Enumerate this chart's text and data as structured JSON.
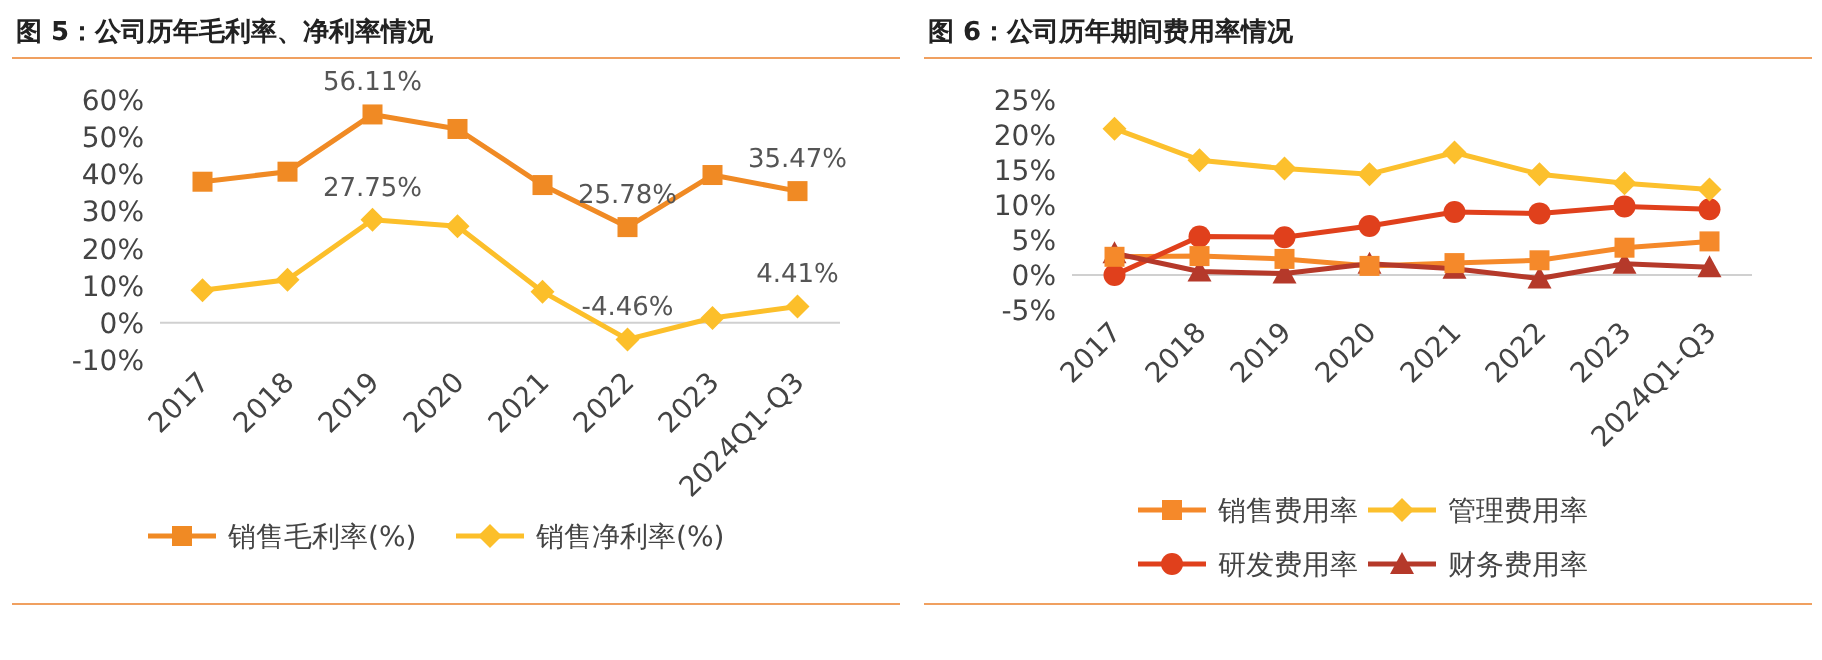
{
  "chart_data": [
    {
      "type": "line",
      "title": "图 5：公司历年毛利率、净利率情况",
      "categories": [
        "2017",
        "2018",
        "2019",
        "2020",
        "2021",
        "2022",
        "2023",
        "2024Q1-Q3"
      ],
      "ylim": [
        -10,
        60
      ],
      "yticks": [
        {
          "value": -10,
          "label": "-10%"
        },
        {
          "value": 0,
          "label": "0%"
        },
        {
          "value": 10,
          "label": "10%"
        },
        {
          "value": 20,
          "label": "20%"
        },
        {
          "value": 30,
          "label": "30%"
        },
        {
          "value": 40,
          "label": "40%"
        },
        {
          "value": 50,
          "label": "50%"
        },
        {
          "value": 60,
          "label": "60%"
        }
      ],
      "legend": "bottom",
      "series": [
        {
          "name": "销售毛利率(%)",
          "color": "#f08a24",
          "marker": "square",
          "values": [
            38.0,
            40.7,
            56.11,
            52.2,
            37.1,
            25.78,
            39.8,
            35.47
          ],
          "value_labels": [
            null,
            null,
            "56.11%",
            null,
            null,
            "25.78%",
            null,
            "35.47%"
          ]
        },
        {
          "name": "销售净利率(%)",
          "color": "#fcbf2a",
          "marker": "diamond",
          "values": [
            8.8,
            11.6,
            27.75,
            26.0,
            8.4,
            -4.46,
            1.3,
            4.41
          ],
          "value_labels": [
            null,
            null,
            "27.75%",
            null,
            null,
            "-4.46%",
            null,
            "4.41%"
          ]
        }
      ]
    },
    {
      "type": "line",
      "title": "图 6：公司历年期间费用率情况",
      "categories": [
        "2017",
        "2018",
        "2019",
        "2020",
        "2021",
        "2022",
        "2023",
        "2024Q1-Q3"
      ],
      "ylim": [
        -5,
        25
      ],
      "yticks": [
        {
          "value": -5,
          "label": "-5%"
        },
        {
          "value": 0,
          "label": "0%"
        },
        {
          "value": 5,
          "label": "5%"
        },
        {
          "value": 10,
          "label": "10%"
        },
        {
          "value": 15,
          "label": "15%"
        },
        {
          "value": 20,
          "label": "20%"
        },
        {
          "value": 25,
          "label": "25%"
        }
      ],
      "legend": "bottom",
      "series": [
        {
          "name": "销售费用率",
          "color": "#f5892a",
          "marker": "square",
          "values": [
            2.6,
            2.7,
            2.3,
            1.3,
            1.7,
            2.1,
            3.9,
            4.8
          ]
        },
        {
          "name": "管理费用率",
          "color": "#fcc02d",
          "marker": "diamond",
          "values": [
            20.9,
            16.4,
            15.2,
            14.4,
            17.5,
            14.4,
            13.1,
            12.2
          ]
        },
        {
          "name": "研发费用率",
          "color": "#e0401c",
          "marker": "circle",
          "values": [
            0.0,
            5.5,
            5.4,
            7.0,
            9.0,
            8.8,
            9.8,
            9.4
          ]
        },
        {
          "name": "财务费用率",
          "color": "#b5392a",
          "marker": "triangle",
          "values": [
            3.1,
            0.5,
            0.2,
            1.6,
            0.9,
            -0.5,
            1.6,
            1.1
          ]
        }
      ]
    }
  ]
}
